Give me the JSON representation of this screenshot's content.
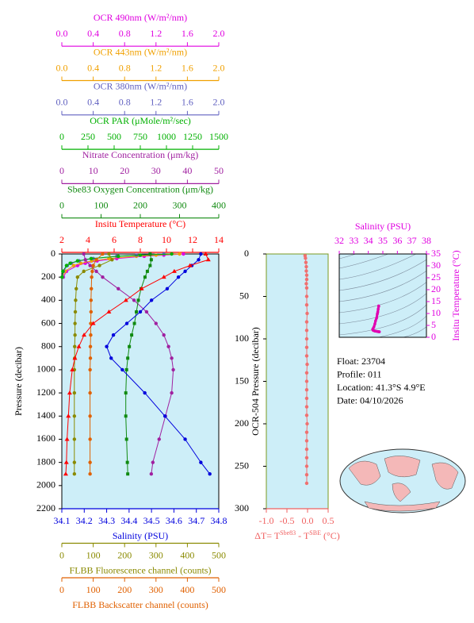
{
  "chart_data": [
    {
      "type": "profile",
      "y_label": "Pressure (decibar)",
      "ylim": [
        0,
        2200
      ],
      "y_inverted": true,
      "yticks": [
        0,
        200,
        400,
        600,
        800,
        1000,
        1200,
        1400,
        1600,
        1800,
        2000,
        2200
      ],
      "background": "#cdeef8",
      "x_axes": [
        {
          "label": "OCR 490nm (W/m²/nm)",
          "color": "#e000e0",
          "side": "top",
          "xlim": [
            0,
            2
          ],
          "xticks": [
            {
              "value": 0,
              "label": "0.0"
            },
            0.4,
            0.8,
            1.2,
            1.6,
            {
              "value": 2,
              "label": "2.0"
            }
          ]
        },
        {
          "label": "OCR 443nm (W/m²/nm)",
          "color": "#f0a000",
          "side": "top",
          "xlim": [
            0,
            2
          ],
          "xticks": [
            {
              "value": 0,
              "label": "0.0"
            },
            0.4,
            0.8,
            1.2,
            1.6,
            {
              "value": 2,
              "label": "2.0"
            }
          ]
        },
        {
          "label": "OCR 380nm (W/m²/nm)",
          "color": "#6060c0",
          "side": "top",
          "xlim": [
            0,
            2
          ],
          "xticks": [
            {
              "value": 0,
              "label": "0.0"
            },
            0.4,
            0.8,
            1.2,
            1.6,
            {
              "value": 2,
              "label": "2.0"
            }
          ]
        },
        {
          "label": "OCR PAR (μMole/m²/sec)",
          "color": "#00b000",
          "side": "top",
          "xlim": [
            0,
            1500
          ],
          "xticks": [
            0,
            250,
            500,
            750,
            1000,
            1250,
            1500
          ]
        },
        {
          "label": "Nitrate Concentration (μm/kg)",
          "color": "#a020a0",
          "side": "top",
          "xlim": [
            0,
            50
          ],
          "xticks": [
            0,
            10,
            20,
            30,
            40,
            50
          ]
        },
        {
          "label": "Sbe83 Oxygen Concentration (μm/kg)",
          "color": "#108a10",
          "side": "top",
          "xlim": [
            0,
            400
          ],
          "xticks": [
            0,
            100,
            200,
            300,
            400
          ]
        },
        {
          "label": "Insitu Temperature (°C)",
          "color": "#ff0000",
          "side": "top",
          "xlim": [
            2,
            14
          ],
          "xticks": [
            2,
            4,
            6,
            8,
            10,
            12,
            14
          ]
        },
        {
          "label": "Salinity (PSU)",
          "color": "#0000dd",
          "side": "bottom",
          "xlim": [
            34.1,
            34.8
          ],
          "xticks": [
            34.1,
            34.2,
            34.3,
            34.4,
            34.5,
            34.6,
            34.7,
            34.8
          ]
        },
        {
          "label": "FLBB Fluorescence channel (counts)",
          "color": "#8a8a00",
          "side": "bottom",
          "xlim": [
            0,
            500
          ],
          "xticks": [
            0,
            100,
            200,
            300,
            400,
            500
          ]
        },
        {
          "label": "FLBB Backscatter channel (counts)",
          "color": "#e06000",
          "side": "bottom",
          "xlim": [
            0,
            500
          ],
          "xticks": [
            0,
            100,
            200,
            300,
            400,
            500
          ]
        }
      ],
      "series": [
        {
          "x_axis": 0,
          "color": "#e000e0",
          "marker": "circle",
          "pressure": [
            0,
            10,
            20,
            40,
            60,
            80,
            100,
            150,
            200
          ],
          "values": [
            1.55,
            1.3,
            1.05,
            0.7,
            0.45,
            0.3,
            0.2,
            0.06,
            0.02
          ]
        },
        {
          "x_axis": 1,
          "color": "#f0a000",
          "marker": "circle",
          "pressure": [
            0,
            10,
            20,
            40,
            60,
            80,
            100,
            150,
            200
          ],
          "values": [
            1.5,
            1.2,
            0.95,
            0.6,
            0.38,
            0.24,
            0.15,
            0.04,
            0.01
          ]
        },
        {
          "x_axis": 2,
          "color": "#6060c0",
          "marker": "circle",
          "pressure": [
            0,
            10,
            20,
            40,
            60,
            80,
            100,
            150,
            200
          ],
          "values": [
            1.3,
            0.95,
            0.7,
            0.4,
            0.22,
            0.12,
            0.07,
            0.02,
            0.01
          ]
        },
        {
          "x_axis": 3,
          "color": "#00b000",
          "marker": "circle",
          "pressure": [
            0,
            10,
            20,
            40,
            60,
            80,
            100,
            150,
            200
          ],
          "values": [
            1050,
            750,
            540,
            280,
            150,
            80,
            45,
            10,
            2
          ]
        },
        {
          "x_axis": 4,
          "color": "#a020a0",
          "marker": "circle",
          "pressure": [
            0,
            50,
            100,
            150,
            200,
            300,
            400,
            500,
            600,
            700,
            800,
            900,
            1000,
            1200,
            1400,
            1600,
            1800,
            1900
          ],
          "values": [
            7,
            7.5,
            9,
            11,
            13,
            18,
            23,
            27,
            30,
            32.5,
            34,
            35,
            35.5,
            35,
            33,
            31,
            29,
            28.5
          ]
        },
        {
          "x_axis": 5,
          "color": "#108a10",
          "marker": "square",
          "pressure": [
            0,
            50,
            100,
            150,
            200,
            300,
            400,
            500,
            600,
            700,
            800,
            900,
            1000,
            1200,
            1400,
            1600,
            1800,
            1900
          ],
          "values": [
            225,
            228,
            225,
            218,
            212,
            202,
            195,
            190,
            185,
            178,
            172,
            168,
            165,
            163,
            163,
            165,
            167,
            168
          ]
        },
        {
          "x_axis": 8,
          "color": "#8a8a00",
          "marker": "circle",
          "pressure": [
            0,
            50,
            100,
            150,
            200,
            300,
            400,
            500,
            600,
            700,
            800,
            900,
            1000,
            1200,
            1400,
            1600,
            1800,
            1900
          ],
          "values": [
            150,
            160,
            120,
            70,
            50,
            46,
            44,
            43,
            42,
            42,
            41,
            41,
            40,
            40,
            40,
            40,
            40,
            40
          ]
        },
        {
          "x_axis": 9,
          "color": "#e06000",
          "marker": "circle",
          "pressure": [
            0,
            50,
            100,
            150,
            200,
            300,
            400,
            500,
            600,
            700,
            800,
            900,
            1000,
            1200,
            1400,
            1600,
            1800,
            1900
          ],
          "values": [
            130,
            110,
            100,
            97,
            95,
            94,
            93,
            93,
            92,
            92,
            91,
            91,
            90,
            90,
            90,
            90,
            90,
            90
          ]
        },
        {
          "x_axis": 7,
          "color": "#0000dd",
          "marker": "circle",
          "pressure": [
            0,
            50,
            100,
            150,
            200,
            300,
            400,
            500,
            600,
            700,
            800,
            900,
            1000,
            1200,
            1400,
            1600,
            1800,
            1900
          ],
          "values": [
            34.72,
            34.71,
            34.68,
            34.65,
            34.62,
            34.57,
            34.5,
            34.45,
            34.39,
            34.33,
            34.3,
            34.32,
            34.37,
            34.47,
            34.56,
            34.65,
            34.72,
            34.76
          ]
        },
        {
          "x_axis": 6,
          "color": "#ff0000",
          "marker": "triangle",
          "pressure": [
            0,
            50,
            100,
            150,
            200,
            300,
            400,
            500,
            600,
            700,
            800,
            900,
            1000,
            1200,
            1400,
            1600,
            1800,
            1900
          ],
          "values": [
            13.0,
            13.2,
            11.8,
            10.6,
            9.8,
            8.1,
            6.9,
            5.6,
            4.4,
            3.7,
            3.3,
            3.0,
            2.8,
            2.6,
            2.5,
            2.4,
            2.35,
            2.3
          ]
        }
      ]
    },
    {
      "type": "profile",
      "y_label": "OCR-504 Pressure (decibar)",
      "ylim": [
        0,
        300
      ],
      "y_inverted": true,
      "yticks": [
        0,
        50,
        100,
        150,
        200,
        250,
        300
      ],
      "background": "#cdeef8",
      "frame_color": "#7a9a20",
      "x_axes": [
        {
          "label_parts": [
            "ΔT= T",
            "Sbe83",
            " - T",
            "SBE",
            " (°C)"
          ],
          "color": "#f06060",
          "side": "bottom",
          "xlim": [
            -1,
            0.5
          ],
          "xticks": [
            {
              "value": -1,
              "label": "-1.0"
            },
            -0.5,
            {
              "value": 0,
              "label": "0.0"
            },
            0.5
          ]
        }
      ],
      "series": [
        {
          "x_axis": 0,
          "color": "#f07070",
          "marker": "circle",
          "pressure": [
            2,
            5,
            10,
            15,
            20,
            25,
            30,
            35,
            40,
            50,
            60,
            70,
            80,
            90,
            100,
            110,
            120,
            130,
            140,
            150,
            160,
            170,
            180,
            190,
            200,
            210,
            220,
            230,
            240,
            250,
            260,
            270
          ],
          "values": [
            -0.06,
            -0.05,
            -0.04,
            -0.03,
            -0.03,
            -0.02,
            -0.02,
            -0.03,
            -0.02,
            -0.02,
            -0.02,
            -0.01,
            -0.02,
            -0.02,
            -0.02,
            -0.02,
            -0.02,
            -0.01,
            -0.02,
            -0.02,
            -0.02,
            -0.02,
            -0.02,
            -0.02,
            -0.01,
            -0.02,
            -0.02,
            -0.02,
            -0.02,
            -0.02,
            -0.02,
            -0.02
          ]
        }
      ]
    },
    {
      "type": "ts",
      "x_label": "Salinity (PSU)",
      "y_label": "Insitu Temperature (°C)",
      "color": "#e000b0",
      "axis_color": "#e000e0",
      "xlim": [
        32,
        38
      ],
      "xticks": [
        32,
        33,
        34,
        35,
        36,
        37,
        38
      ],
      "ylim": [
        0,
        35
      ],
      "yticks": [
        0,
        5,
        10,
        15,
        20,
        25,
        30,
        35
      ],
      "x": [
        34.72,
        34.71,
        34.68,
        34.65,
        34.62,
        34.57,
        34.5,
        34.45,
        34.39,
        34.33,
        34.3,
        34.32,
        34.37,
        34.47,
        34.56,
        34.65,
        34.72,
        34.76
      ],
      "values": [
        13.0,
        13.2,
        11.8,
        10.6,
        9.8,
        8.1,
        6.9,
        5.6,
        4.4,
        3.7,
        3.3,
        3.0,
        2.8,
        2.6,
        2.5,
        2.4,
        2.35,
        2.3
      ]
    }
  ],
  "info": [
    "Float:  23704",
    "Profile:  011",
    "Location:  41.3°S   4.9°E",
    "Date:  04/10/2026"
  ]
}
